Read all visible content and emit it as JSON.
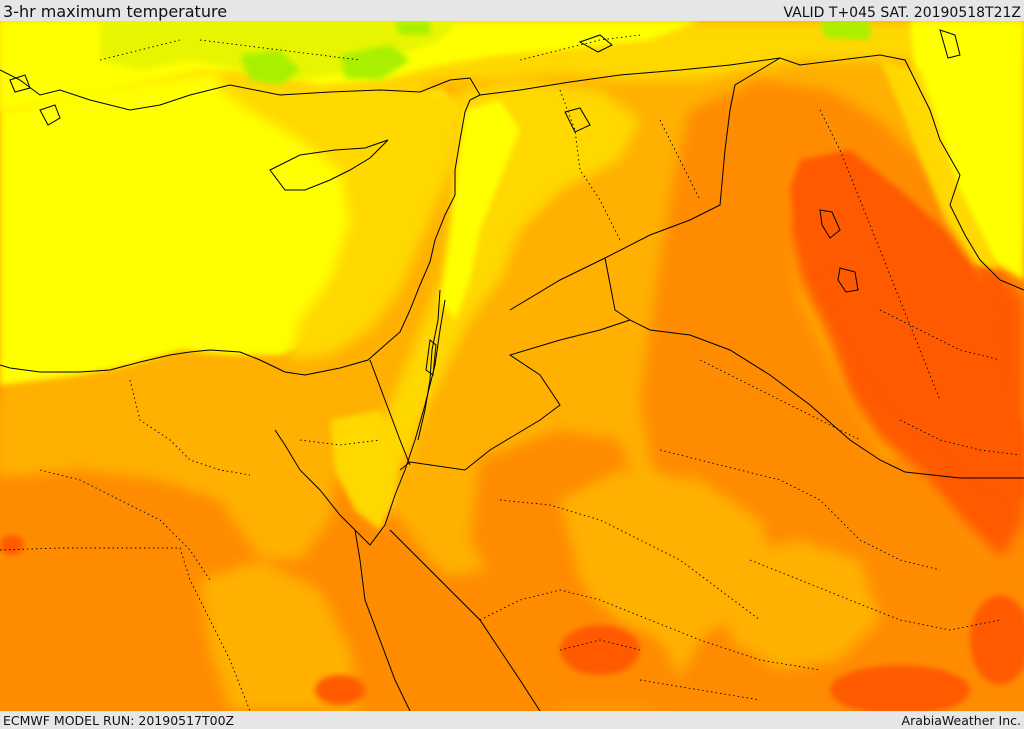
{
  "header": {
    "title": "3-hr maximum temperature",
    "valid": "VALID T+045 SAT. 20190518T21Z"
  },
  "footer": {
    "model_run": "ECMWF MODEL RUN: 20190517T00Z",
    "credit": "ArabiaWeather Inc."
  },
  "map": {
    "field": "3-hr maximum temperature",
    "color_levels": [
      "#a8f000",
      "#e8f500",
      "#ffff00",
      "#ffd800",
      "#ffb000",
      "#ff8c00",
      "#ff5a00"
    ],
    "border_color": "#000000"
  }
}
